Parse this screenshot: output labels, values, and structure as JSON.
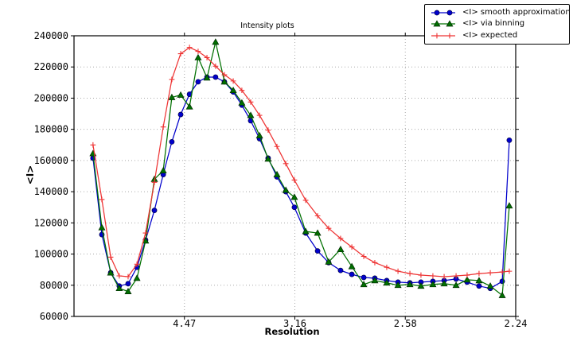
{
  "figure": {
    "kind": "static-plot-image"
  },
  "chart_data": {
    "type": "line",
    "title": "Intensity plots",
    "xlabel": "Resolution",
    "ylabel": "<I>",
    "legend_position": "top-right-outside",
    "grid": "dotted",
    "x_axis": {
      "unit": "resolution (A), axis linear in 1/d^2",
      "range_inv_d2": [
        0.0,
        0.2
      ],
      "ticks": [
        {
          "label": "4.47",
          "inv_d2": 0.05
        },
        {
          "label": "3.16",
          "inv_d2": 0.1
        },
        {
          "label": "2.58",
          "inv_d2": 0.15
        },
        {
          "label": "2.24",
          "inv_d2": 0.2
        }
      ]
    },
    "y_axis": {
      "range": [
        60000,
        240000
      ],
      "tick_labels": [
        "60000",
        "80000",
        "100000",
        "120000",
        "140000",
        "160000",
        "180000",
        "200000",
        "220000",
        "240000"
      ],
      "tick_values": [
        60000,
        80000,
        100000,
        120000,
        140000,
        160000,
        180000,
        200000,
        220000,
        240000
      ]
    },
    "x_inv_d2": [
      0.0086,
      0.0126,
      0.0166,
      0.0205,
      0.0245,
      0.0285,
      0.0324,
      0.0364,
      0.0404,
      0.0443,
      0.0483,
      0.0523,
      0.0562,
      0.0602,
      0.0641,
      0.0681,
      0.0721,
      0.076,
      0.08,
      0.084,
      0.0879,
      0.0919,
      0.0959,
      0.0998,
      0.1049,
      0.1103,
      0.1153,
      0.1207,
      0.1258,
      0.1312,
      0.1362,
      0.1416,
      0.1467,
      0.1521,
      0.1571,
      0.1625,
      0.1676,
      0.173,
      0.178,
      0.1834,
      0.1885,
      0.1939,
      0.1971
    ],
    "resolution_d": [
      10.75,
      8.9,
      7.77,
      6.98,
      6.39,
      5.93,
      5.55,
      5.24,
      4.98,
      4.75,
      4.55,
      4.37,
      4.22,
      4.08,
      3.95,
      3.83,
      3.73,
      3.63,
      3.54,
      3.45,
      3.37,
      3.3,
      3.23,
      3.17,
      3.09,
      3.01,
      2.94,
      2.88,
      2.82,
      2.76,
      2.71,
      2.66,
      2.61,
      2.56,
      2.52,
      2.48,
      2.44,
      2.4,
      2.37,
      2.33,
      2.3,
      2.27,
      2.25
    ],
    "series": [
      {
        "name": "<I> smooth approximation",
        "color": "#0000cc",
        "marker": "circle",
        "values": [
          161500,
          112500,
          88000,
          79500,
          81000,
          91500,
          109000,
          128000,
          151000,
          172000,
          189500,
          202500,
          210500,
          213500,
          213500,
          210500,
          204000,
          195500,
          185500,
          174000,
          161500,
          149500,
          140000,
          130000,
          113500,
          102000,
          94500,
          89500,
          87000,
          85000,
          84500,
          83000,
          82000,
          81500,
          82000,
          82500,
          83000,
          84000,
          82000,
          79500,
          78000,
          82500,
          173000
        ]
      },
      {
        "name": "<I> via binning",
        "color": "#007000",
        "marker": "triangle",
        "values": [
          164500,
          117000,
          88000,
          78000,
          76000,
          84500,
          108500,
          148000,
          153500,
          200500,
          202000,
          194500,
          226000,
          213000,
          236000,
          210500,
          205000,
          197000,
          189000,
          176000,
          161000,
          151000,
          141000,
          136500,
          114500,
          113500,
          95000,
          103000,
          92000,
          80500,
          83000,
          81500,
          80000,
          80500,
          79500,
          80500,
          81000,
          80000,
          83500,
          83000,
          79500,
          73500,
          131000
        ]
      },
      {
        "name": "<I> expected",
        "color": "#ee3333",
        "marker": "plus",
        "values": [
          170000,
          135000,
          98000,
          86000,
          85500,
          93500,
          113500,
          146000,
          181500,
          212000,
          228500,
          232500,
          230000,
          226000,
          220500,
          215000,
          211000,
          205000,
          197500,
          189000,
          179500,
          169000,
          158000,
          147500,
          134500,
          124500,
          116500,
          110000,
          104500,
          98500,
          94500,
          91500,
          89000,
          87500,
          86500,
          86000,
          85500,
          86000,
          86500,
          87500,
          88000,
          88500,
          89000
        ]
      }
    ]
  }
}
